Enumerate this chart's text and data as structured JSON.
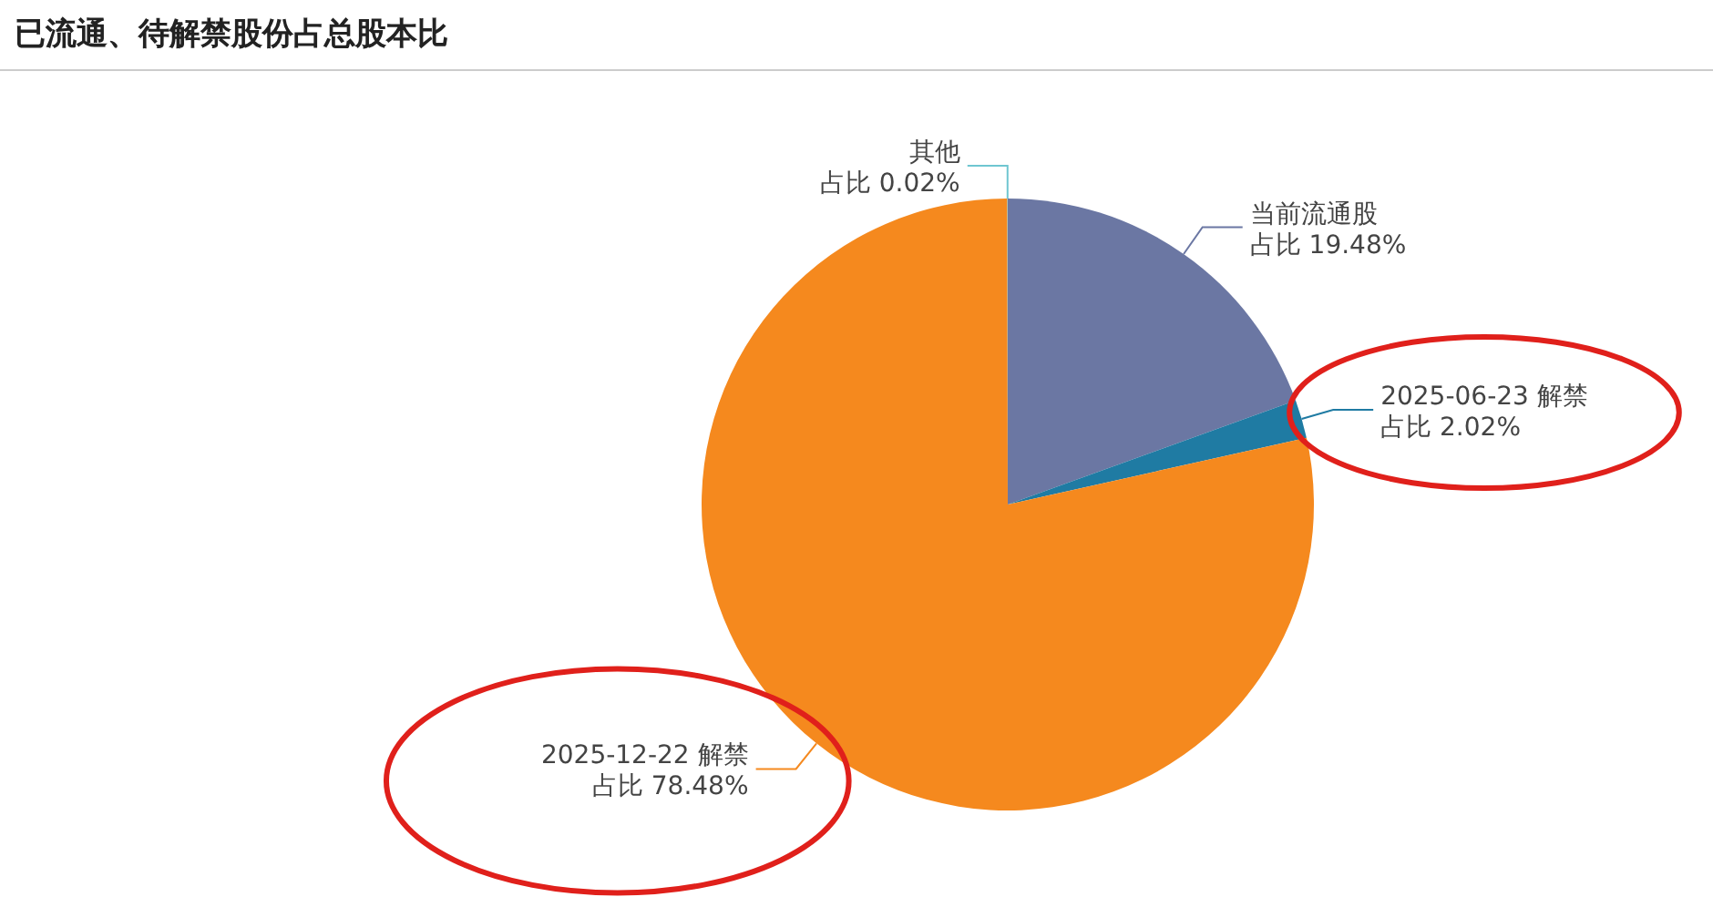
{
  "chart_data": {
    "type": "pie",
    "title": "已流通、待解禁股份占总股本比",
    "categories": [
      "当前流通股",
      "2025-06-23 解禁",
      "2025-12-22 解禁",
      "其他"
    ],
    "values": [
      19.48,
      2.02,
      78.48,
      0.02
    ],
    "value_labels": [
      "占比 19.48%",
      "占比 2.02%",
      "占比 78.48%",
      "占比 0.02%"
    ],
    "colors": [
      "#6b77a3",
      "#1f7ba3",
      "#f5891e",
      "#6fc6d1"
    ]
  }
}
